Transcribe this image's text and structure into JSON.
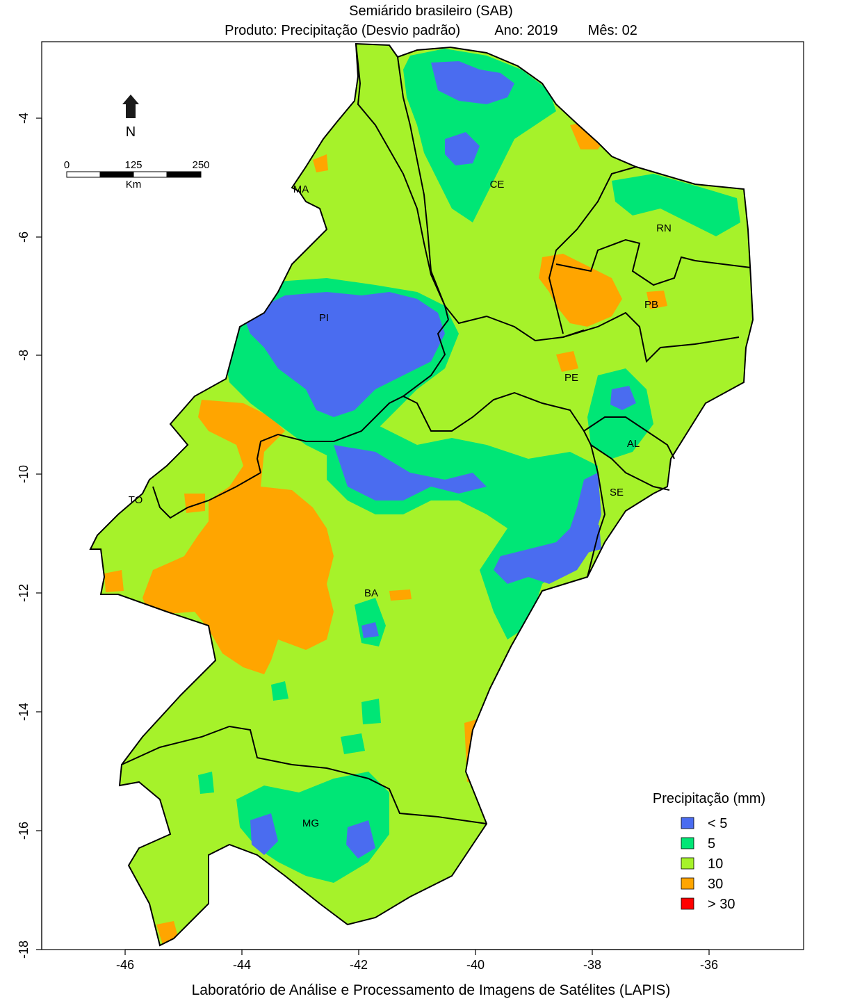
{
  "title": {
    "line1": "Semiárido brasileiro (SAB)",
    "line2_product": "Produto: Precipitação (Desvio padrão)",
    "line2_year": "Ano:  2019",
    "line2_month": "Mês:  02"
  },
  "footer": "Laboratório de Análise e Processamento de Imagens de Satélites (LAPIS)",
  "north_arrow": {
    "label": "N",
    "icon": "north-arrow-icon"
  },
  "scale_bar": {
    "labels": [
      "0",
      "125",
      "250"
    ],
    "unit": "Km"
  },
  "axes": {
    "x_ticks": [
      "-46",
      "-44",
      "-42",
      "-40",
      "-38",
      "-36"
    ],
    "y_ticks": [
      "-4",
      "-6",
      "-8",
      "-10",
      "-12",
      "-14",
      "-16",
      "-18"
    ]
  },
  "states": [
    "MA",
    "CE",
    "RN",
    "PB",
    "PI",
    "PE",
    "AL",
    "SE",
    "TO",
    "BA",
    "MG"
  ],
  "legend": {
    "title": "Precipitação (mm)",
    "items": [
      {
        "label": "< 5",
        "color": "#4a6cf0"
      },
      {
        "label": "5",
        "color": "#00e676"
      },
      {
        "label": "10",
        "color": "#a6f22a"
      },
      {
        "label": "30",
        "color": "#ffa500"
      },
      {
        "label": "> 30",
        "color": "#ff0000"
      }
    ]
  },
  "colors": {
    "base": "#a6f22a",
    "low": "#4a6cf0",
    "mid": "#00e676",
    "high": "#ffa500",
    "extreme": "#ff0000"
  }
}
